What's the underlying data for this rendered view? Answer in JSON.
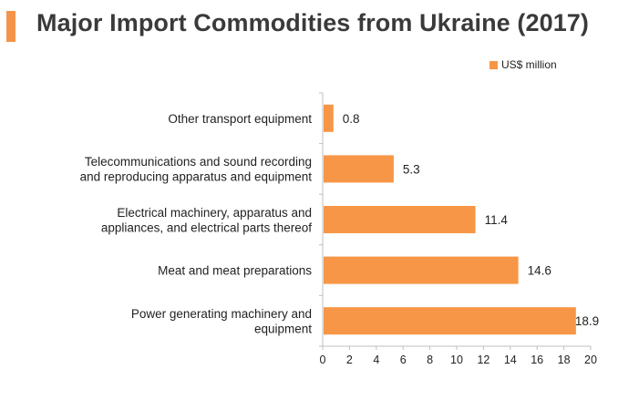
{
  "colors": {
    "accent": "#f4944a",
    "bar": "#f79646",
    "axis": "#bfbfbf"
  },
  "chart_data": {
    "type": "bar",
    "orientation": "horizontal",
    "title": "Major Import Commodities from Ukraine (2017)",
    "legend": {
      "position": "top-right"
    },
    "categories": [
      [
        "Other transport equipment"
      ],
      [
        "Telecommunications and sound recording",
        "and reproducing apparatus and equipment"
      ],
      [
        "Electrical machinery, apparatus and",
        "appliances, and electrical parts thereof"
      ],
      [
        "Meat and meat preparations"
      ],
      [
        "Power generating machinery and",
        "equipment"
      ]
    ],
    "series": [
      {
        "name": "US$ million",
        "values": [
          0.8,
          5.3,
          11.4,
          14.6,
          18.9
        ]
      }
    ],
    "value_labels": [
      "0.8",
      "5.3",
      "11.4",
      "14.6",
      "18.9"
    ],
    "xlim": [
      0,
      20
    ],
    "xticks": [
      0,
      2,
      4,
      6,
      8,
      10,
      12,
      14,
      16,
      18,
      20
    ],
    "grid": false
  }
}
